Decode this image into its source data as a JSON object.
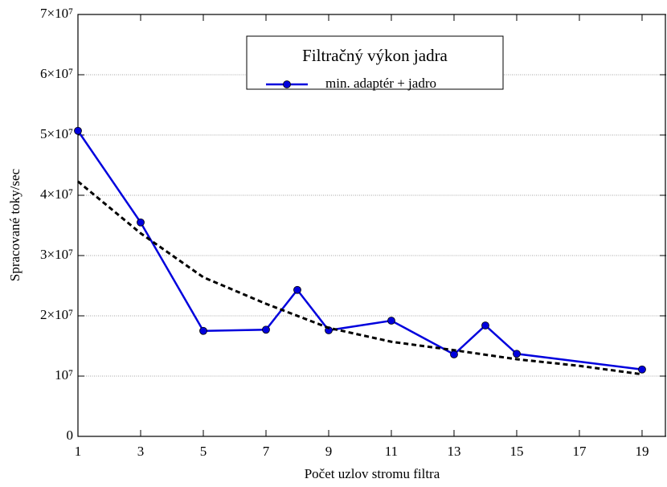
{
  "chart_data": {
    "type": "line",
    "xlabel": "Počet uzlov stromu filtra",
    "ylabel": "Spracované toky/sec",
    "legend_title": "Filtračný výkon jadra",
    "legend": "top",
    "grid": true,
    "xlim": [
      1,
      19.77
    ],
    "xticks": [
      1,
      3,
      5,
      7,
      9,
      11,
      13,
      15,
      17,
      19
    ],
    "ylim": [
      0,
      70000000
    ],
    "yticks": [
      0,
      {
        "value": 10000000,
        "label": "10⁷"
      },
      {
        "value": 20000000,
        "label": "2×10⁷"
      },
      {
        "value": 30000000,
        "label": "3×10⁷"
      },
      {
        "value": 40000000,
        "label": "4×10⁷"
      },
      {
        "value": 50000000,
        "label": "5×10⁷"
      },
      {
        "value": 60000000,
        "label": "6×10⁷"
      },
      {
        "value": 70000000,
        "label": "7×10⁷"
      }
    ],
    "series": [
      {
        "name": "min. adaptér + jadro",
        "color": "#0000dd",
        "markers": true,
        "x": [
          1,
          3,
          5,
          7,
          8,
          9,
          11,
          13,
          14,
          15,
          19
        ],
        "values": [
          50700000,
          35500000,
          17500000,
          17700000,
          24300000,
          17600000,
          19200000,
          13600000,
          18400000,
          13700000,
          11100000
        ]
      },
      {
        "color": "#000000",
        "dashed": true,
        "x": [
          1,
          3,
          5,
          7,
          9,
          11,
          13,
          15,
          17,
          19
        ],
        "values": [
          42300000,
          33700000,
          26400000,
          22000000,
          18000000,
          15700000,
          14300000,
          12800000,
          11700000,
          10300000
        ]
      }
    ]
  }
}
